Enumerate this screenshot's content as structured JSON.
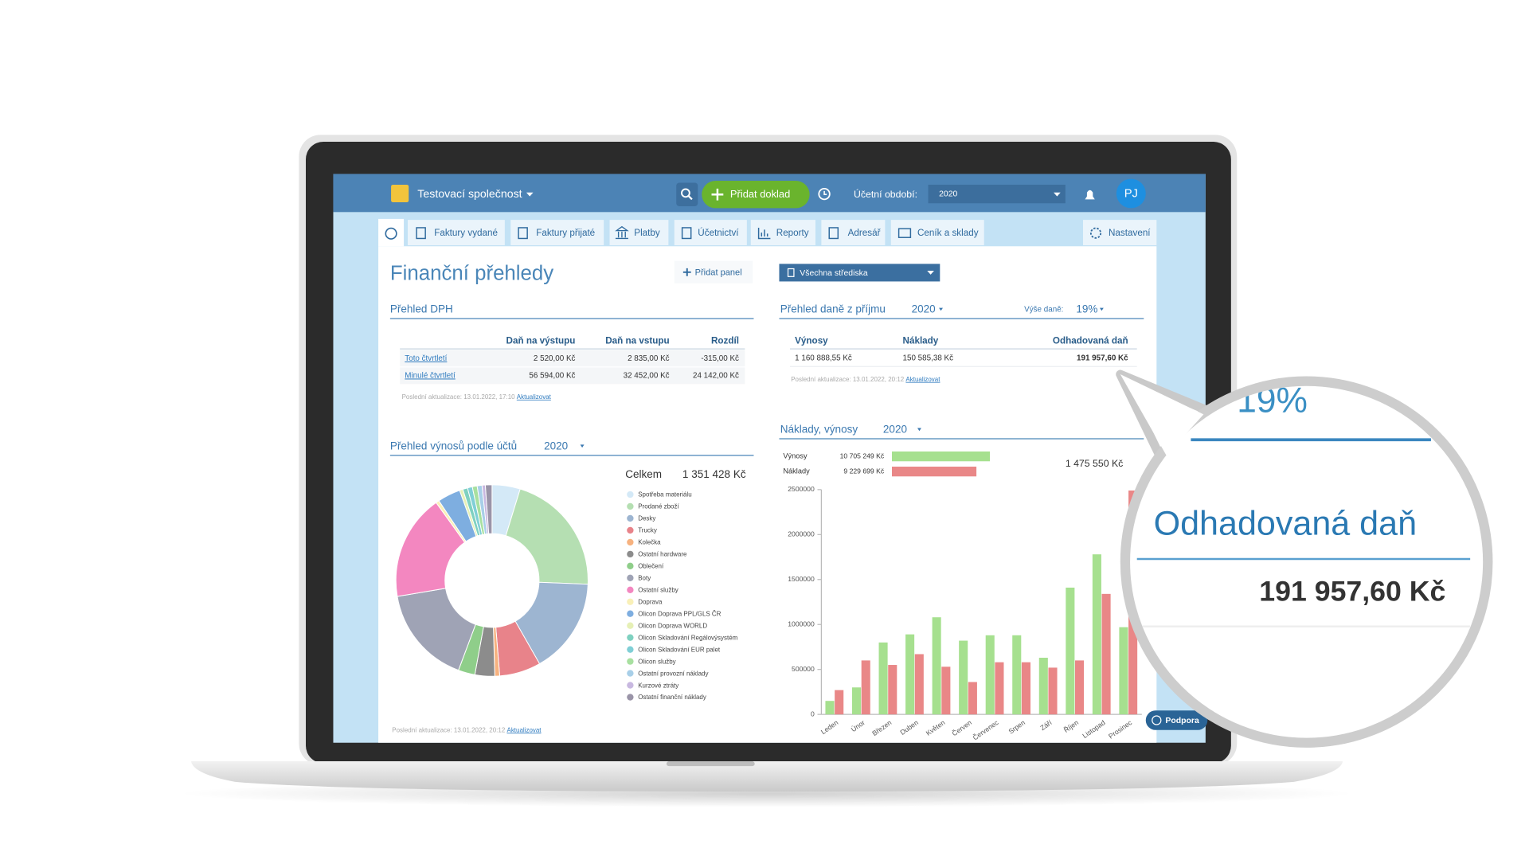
{
  "header": {
    "company": "Testovací společnost",
    "add_document": "Přidat doklad",
    "period_label": "Účetní období:",
    "period": "2020",
    "avatar": "PJ"
  },
  "nav": {
    "items": [
      "Faktury vydané",
      "Faktury přijaté",
      "Platby",
      "Účetnictví",
      "Reporty",
      "Adresář",
      "Ceník a sklady",
      "Nastavení"
    ]
  },
  "dashboard": {
    "title": "Finanční přehledy",
    "add_panel": "Přidat panel",
    "centers": "Všechna střediska",
    "support": "Podpora"
  },
  "vat": {
    "title": "Přehled DPH",
    "columns": [
      "Daň na výstupu",
      "Daň na vstupu",
      "Rozdíl"
    ],
    "rows": [
      [
        "Toto čtvrtletí",
        "2 520,00 Kč",
        "2 835,00 Kč",
        "-315,00 Kč"
      ],
      [
        "Minulé čtvrtletí",
        "56 594,00 Kč",
        "32 452,00 Kč",
        "24 142,00 Kč"
      ]
    ],
    "updated": "Poslední aktualizace: 13.01.2022, 17:10",
    "refresh": "Aktualizovat"
  },
  "income_tax": {
    "title": "Přehled daně z příjmu",
    "year": "2020",
    "rate_label": "Výše daně:",
    "rate": "19%",
    "columns": [
      "Výnosy",
      "Náklady",
      "Odhadovaná daň"
    ],
    "row": [
      "1 160 888,55 Kč",
      "150 585,38 Kč",
      "191 957,60 Kč"
    ],
    "updated": "Poslední aktualizace: 13.01.2022, 20:12",
    "refresh": "Aktualizovat"
  },
  "chart_data": [
    {
      "type": "pie",
      "donut": true,
      "title": "Přehled výnosů podle účtů",
      "year": "2020",
      "total_label": "Celkem",
      "total": "1 351 428 Kč",
      "categories": [
        "Spotřeba materiálu",
        "Prodané zboží",
        "Desky",
        "Trucky",
        "Kolečka",
        "Ostatní hardware",
        "Oblečení",
        "Boty",
        "Ostatní služby",
        "Doprava",
        "Olicon Doprava PPL/GLS ČR",
        "Olicon Doprava WORLD",
        "Olicon Skladování Regálovýsystém",
        "Olicon Skladování EUR palet",
        "Olicon služby",
        "Ostatní provozní náklady",
        "Kurzové ztráty",
        "Ostatní finanční náklady"
      ],
      "values": [
        64000,
        282000,
        218000,
        94000,
        11000,
        45000,
        38000,
        225000,
        240000,
        7500,
        52000,
        7500,
        11000,
        11000,
        11000,
        11000,
        7500,
        15000
      ],
      "colors": [
        "#d4e9f7",
        "#b5dfb2",
        "#9db5d1",
        "#e8838a",
        "#f7b27f",
        "#8c8c8c",
        "#8fce8a",
        "#9fa3b5",
        "#f387c0",
        "#f9f0b8",
        "#7eaee0",
        "#e6f0b6",
        "#7fd1c0",
        "#80cfd6",
        "#a8e0a0",
        "#a8cfe8",
        "#c8b8e0",
        "#9a94a8"
      ],
      "updated": "Poslední aktualizace: 13.01.2022, 20:12",
      "refresh": "Aktualizovat"
    },
    {
      "type": "bar",
      "title": "Náklady, výnosy",
      "year": "2020",
      "categories": [
        "Leden",
        "Únor",
        "Březen",
        "Duben",
        "Květen",
        "Červen",
        "Červenec",
        "Srpen",
        "Září",
        "Říjen",
        "Listopad",
        "Prosinec"
      ],
      "series": [
        {
          "name": "Výnosy",
          "color": "#a6e08f",
          "values": [
            150000,
            300000,
            800000,
            890000,
            1080000,
            820000,
            880000,
            880000,
            630000,
            1410000,
            1780000,
            970000
          ],
          "total": 10705249,
          "total_label": "10 705 249 Kč"
        },
        {
          "name": "Náklady",
          "color": "#e98787",
          "values": [
            270000,
            600000,
            550000,
            670000,
            530000,
            360000,
            580000,
            580000,
            520000,
            600000,
            1340000,
            2490000
          ],
          "total": 9229699,
          "total_label": "9 229 699 Kč"
        }
      ],
      "summary": "1 475 550 Kč",
      "ylim": [
        0,
        2500000
      ],
      "yticks": [
        0,
        500000,
        1000000,
        1500000,
        2000000,
        2500000
      ]
    }
  ]
}
